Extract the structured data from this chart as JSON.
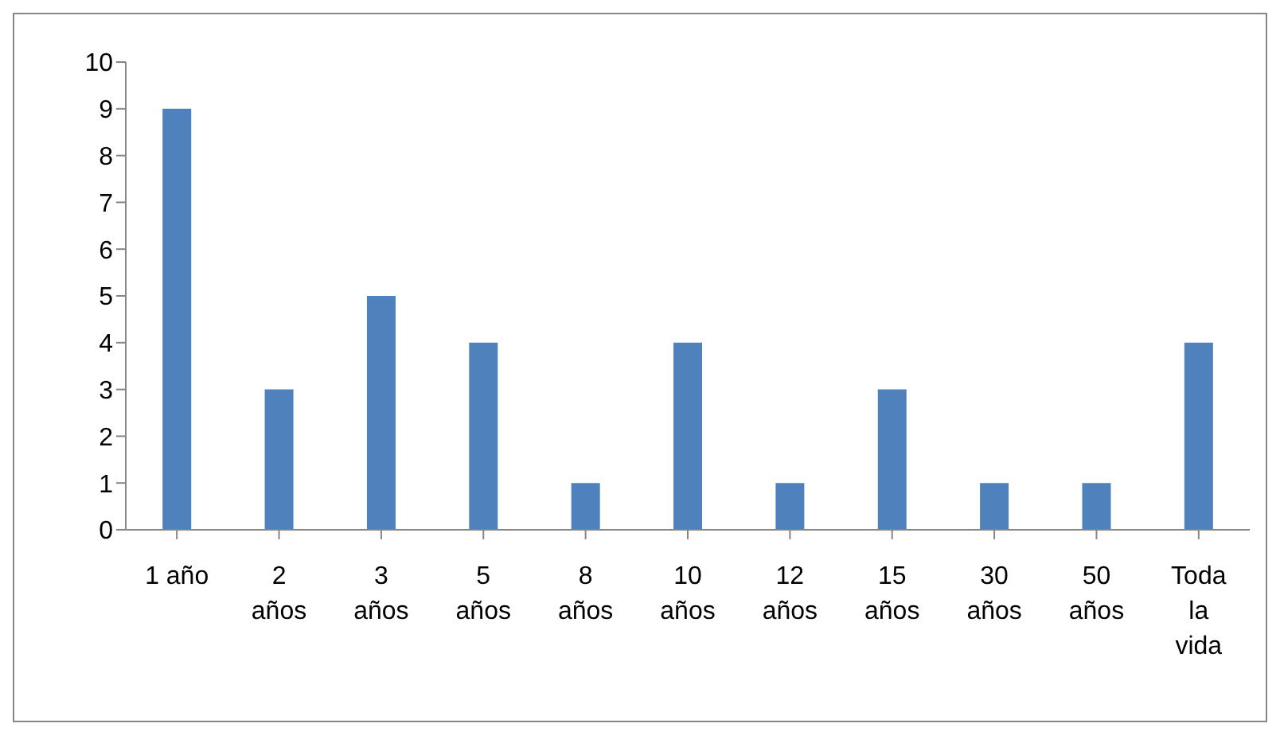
{
  "chart_data": {
    "type": "bar",
    "categories": [
      "1 año",
      "2 años",
      "3 años",
      "5 años",
      "8 años",
      "10 años",
      "12 años",
      "15 años",
      "30 años",
      "50 años",
      "Toda la vida"
    ],
    "values": [
      9,
      3,
      5,
      4,
      1,
      4,
      1,
      3,
      1,
      1,
      4
    ],
    "color": "#4f81bd",
    "ylim": [
      0,
      10
    ],
    "yticks": [
      0,
      1,
      2,
      3,
      4,
      5,
      6,
      7,
      8,
      9,
      10
    ],
    "grid": false,
    "legend": false
  }
}
